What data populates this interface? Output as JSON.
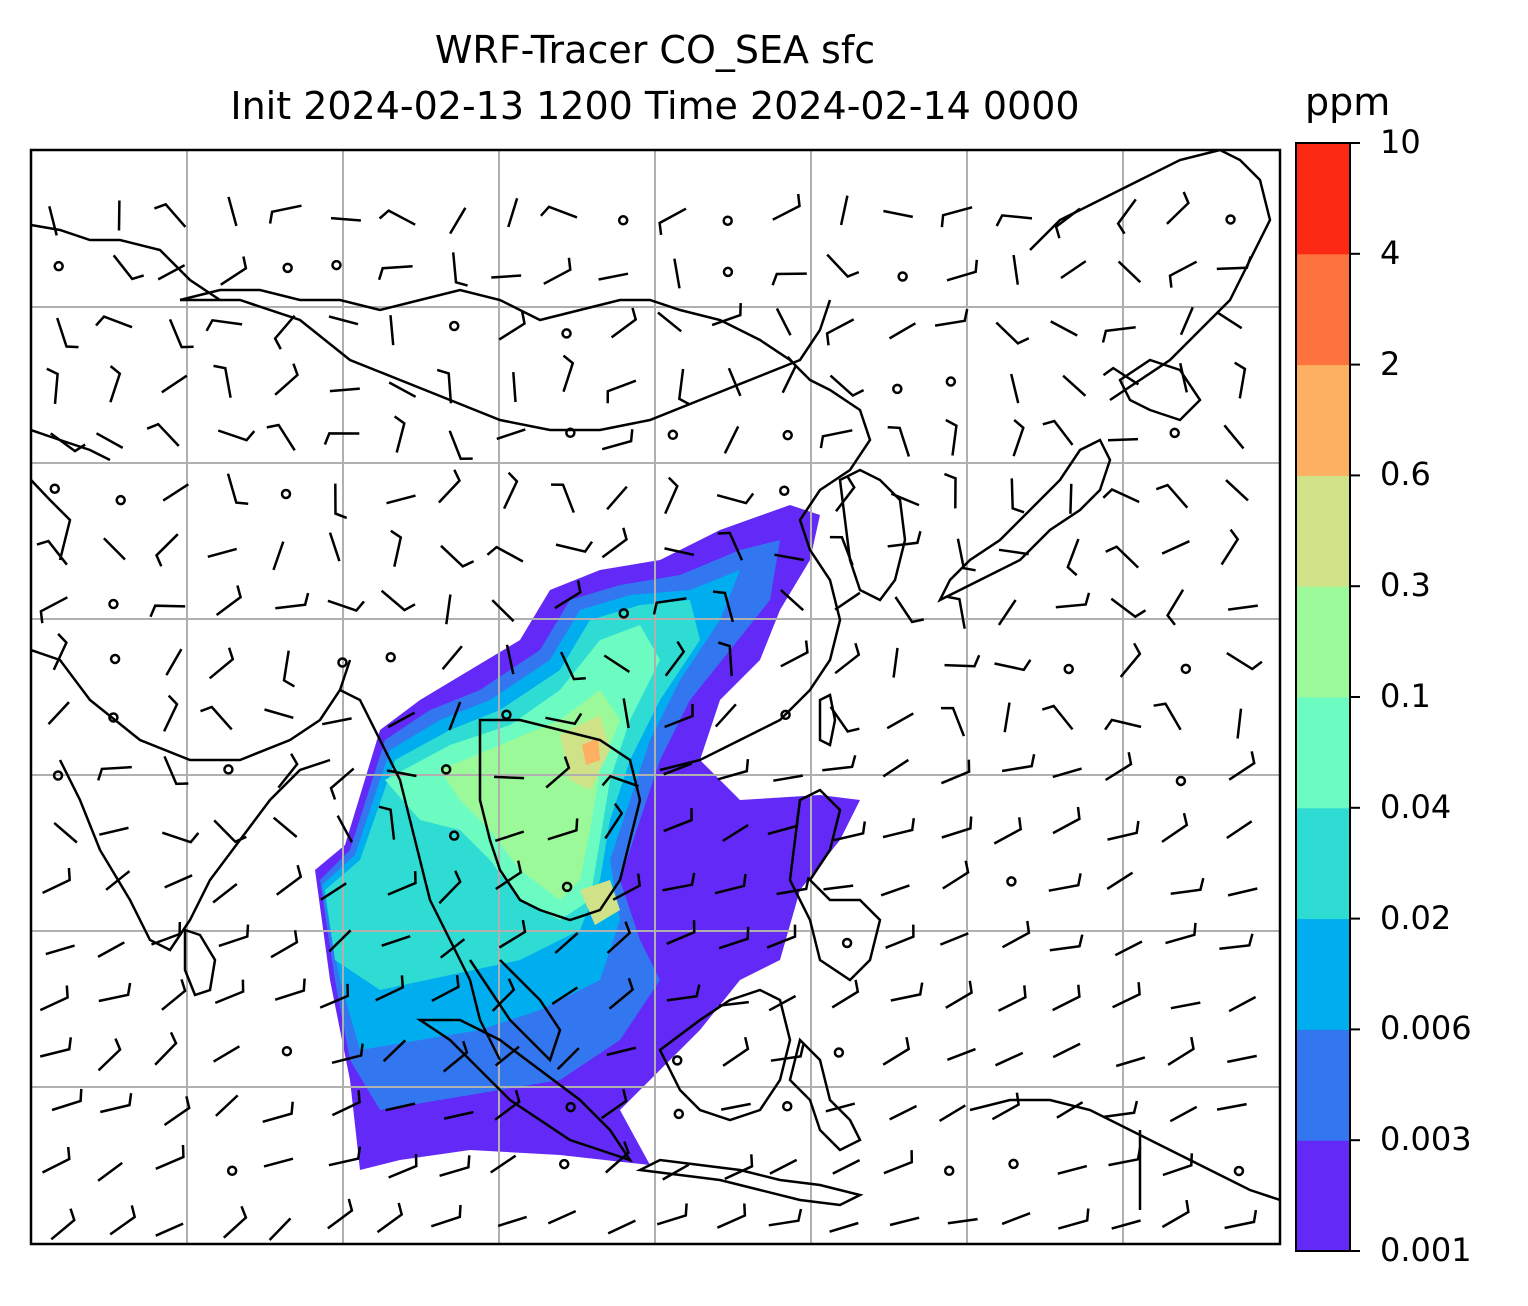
{
  "title": {
    "line1": "WRF-Tracer CO_SEA sfc",
    "line2": "Init 2024-02-13 1200 Time 2024-02-14 0000"
  },
  "colorbar": {
    "unit": "ppm",
    "levels": [
      "0.001",
      "0.003",
      "0.006",
      "0.02",
      "0.04",
      "0.1",
      "0.3",
      "0.6",
      "2",
      "4",
      "10"
    ],
    "colors": [
      "#6329f7",
      "#3377f0",
      "#00aeef",
      "#2fdcd4",
      "#6cfcc1",
      "#9cf99a",
      "#cfe288",
      "#fdb061",
      "#fe723d",
      "#fc2a15"
    ]
  },
  "map": {
    "coastline_color": "#000000",
    "gridline_color": "#b0b0b0",
    "wind_barb_color": "#000000"
  }
}
